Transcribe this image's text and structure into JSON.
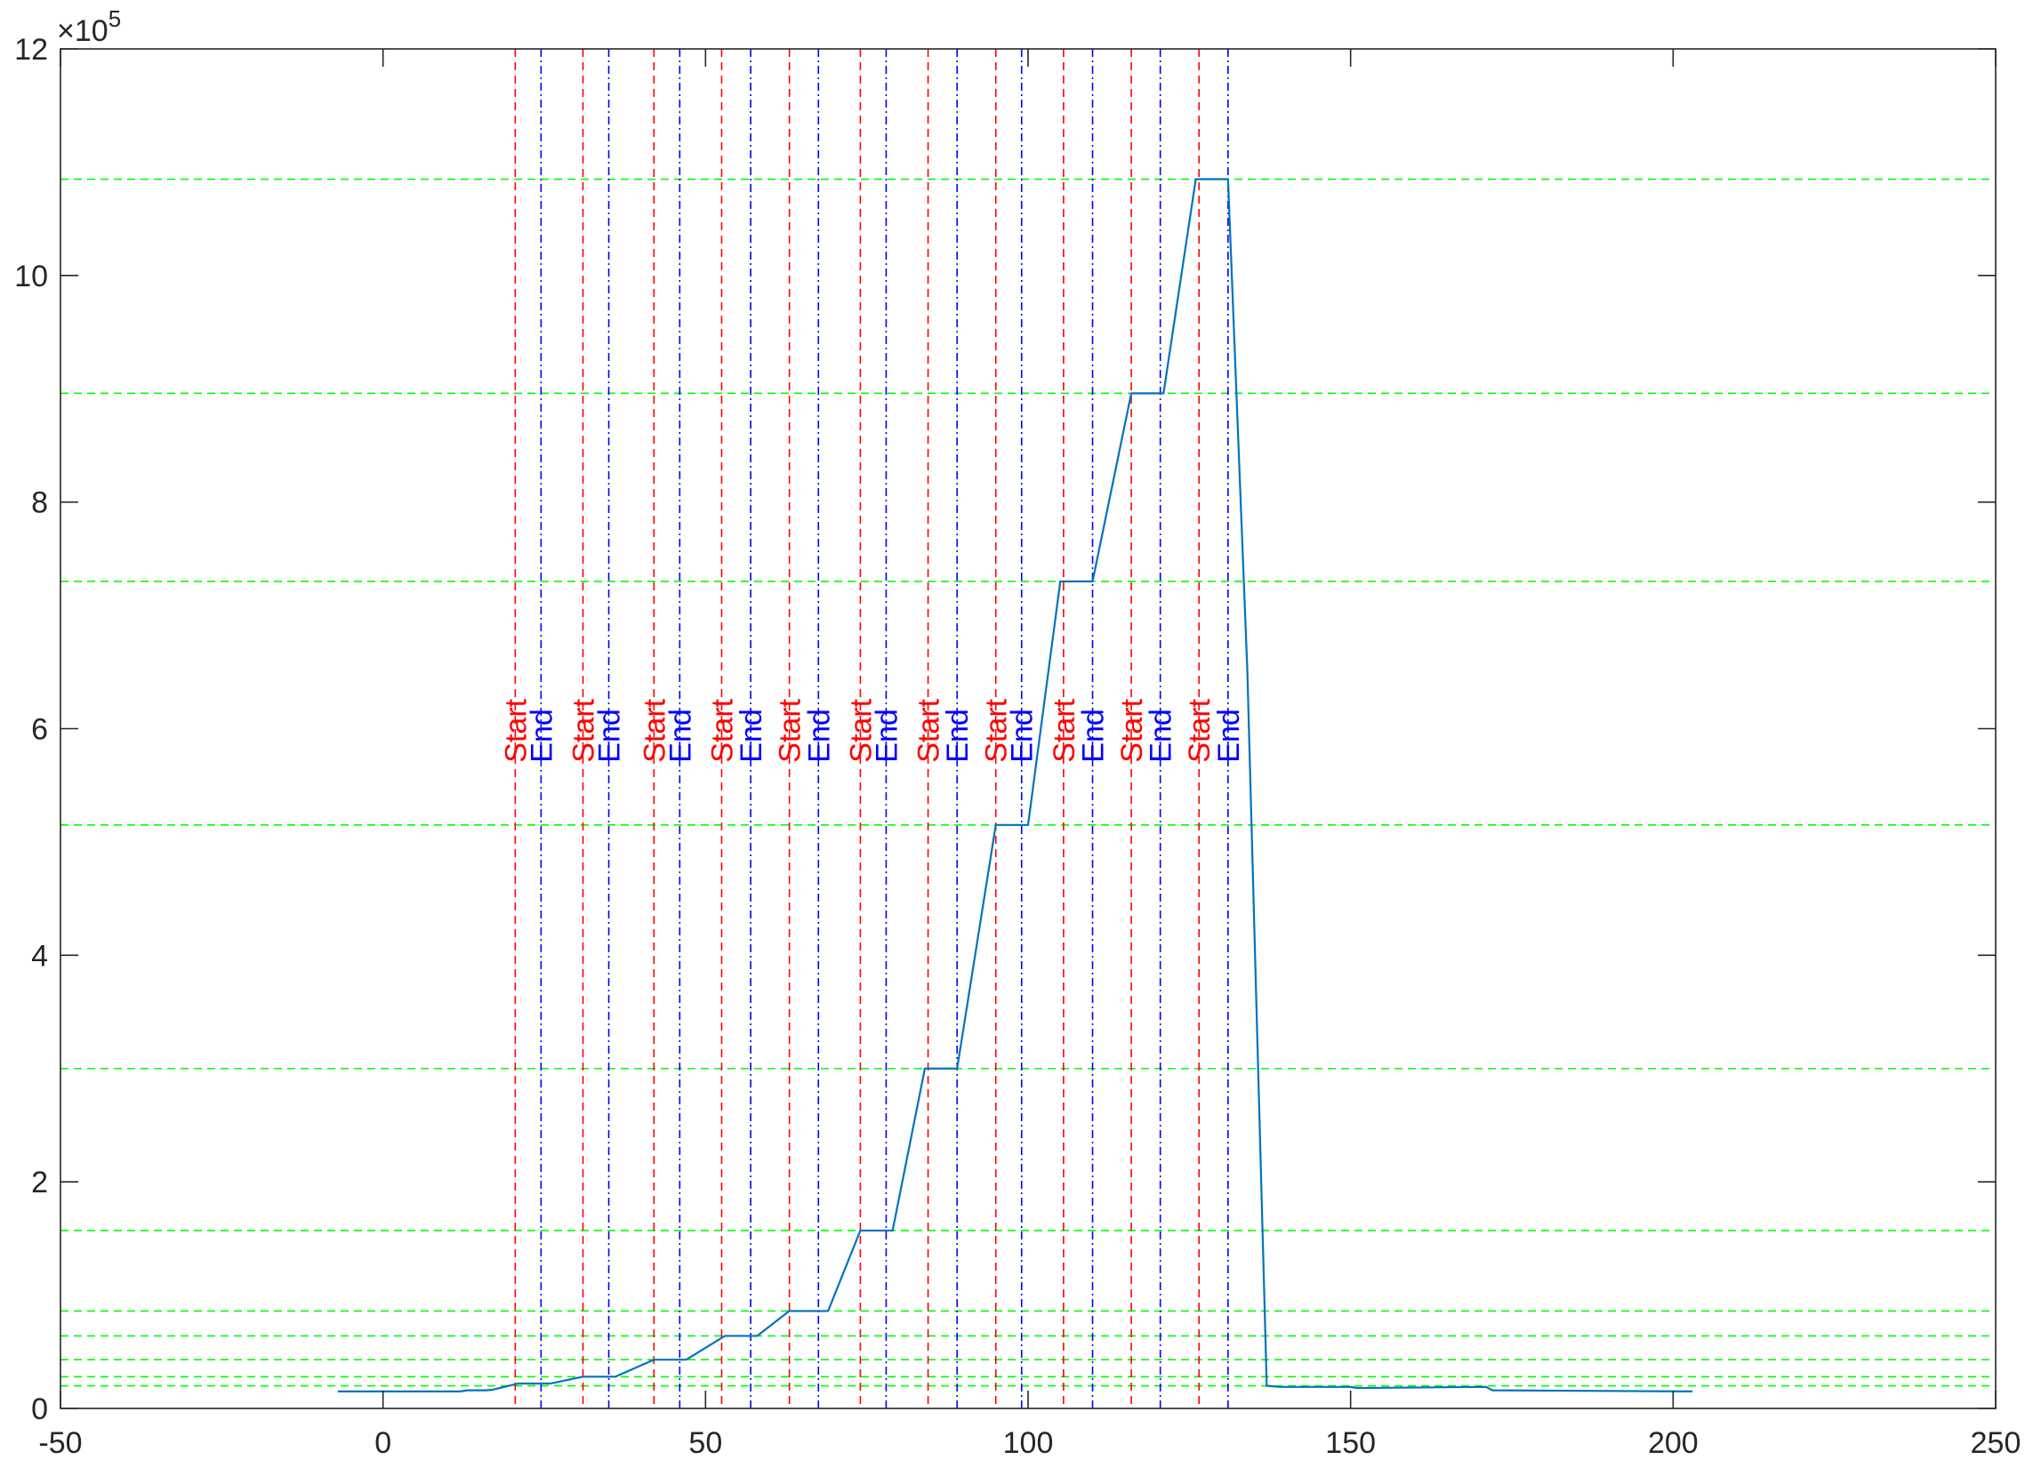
{
  "chart_data": {
    "type": "line",
    "title": "",
    "xlabel": "",
    "ylabel": "",
    "xlim": [
      -50,
      250
    ],
    "ylim": [
      0,
      1200000
    ],
    "x_ticks": [
      -50,
      0,
      50,
      100,
      150,
      200,
      250
    ],
    "x_tick_labels": [
      "-50",
      "0",
      "50",
      "100",
      "150",
      "200",
      "250"
    ],
    "y_ticks": [
      0,
      200000,
      400000,
      600000,
      800000,
      1000000,
      1200000
    ],
    "y_tick_labels": [
      "0",
      "2",
      "4",
      "6",
      "8",
      "10",
      "12"
    ],
    "y_exponent_label": {
      "base": "×10",
      "power": "5"
    },
    "grid": false,
    "legend": "none",
    "series": [
      {
        "color": "#0072BD",
        "points": [
          [
            -7,
            15000
          ],
          [
            12,
            15000
          ],
          [
            13,
            16000
          ],
          [
            16,
            16000
          ],
          [
            17,
            16500
          ],
          [
            21,
            22000
          ],
          [
            26,
            22000
          ],
          [
            31,
            28000
          ],
          [
            36,
            28000
          ],
          [
            42,
            43000
          ],
          [
            47,
            43000
          ],
          [
            53,
            64000
          ],
          [
            58,
            64000
          ],
          [
            63,
            86000
          ],
          [
            69,
            86000
          ],
          [
            74,
            157000
          ],
          [
            79,
            157000
          ],
          [
            84,
            300000
          ],
          [
            89,
            300000
          ],
          [
            95,
            515000
          ],
          [
            100,
            515000
          ],
          [
            105,
            730000
          ],
          [
            110,
            730000
          ],
          [
            116,
            896000
          ],
          [
            121,
            896000
          ],
          [
            126,
            1085000
          ],
          [
            131,
            1085000
          ],
          [
            134,
            650000
          ],
          [
            137,
            20000
          ],
          [
            139,
            19000
          ],
          [
            150,
            19000
          ],
          [
            151,
            18000
          ],
          [
            171,
            19000
          ],
          [
            172,
            16000
          ],
          [
            203,
            15000
          ]
        ]
      }
    ],
    "start_lines": {
      "color": "#FF0000",
      "label": "Start",
      "x": [
        20.5,
        31,
        42,
        52.5,
        63,
        74,
        84.5,
        95,
        105.5,
        116,
        126.5
      ]
    },
    "end_lines": {
      "color": "#0000FF",
      "label": "End",
      "x": [
        24.5,
        35,
        46,
        57,
        67.5,
        78,
        89,
        99,
        110,
        120.5,
        131
      ]
    },
    "level_lines": {
      "color": "#00FF00",
      "y": [
        20000,
        28000,
        43000,
        64000,
        86000,
        157000,
        300000,
        515000,
        730000,
        896000,
        1085000
      ]
    },
    "event_label_y": 570000
  }
}
